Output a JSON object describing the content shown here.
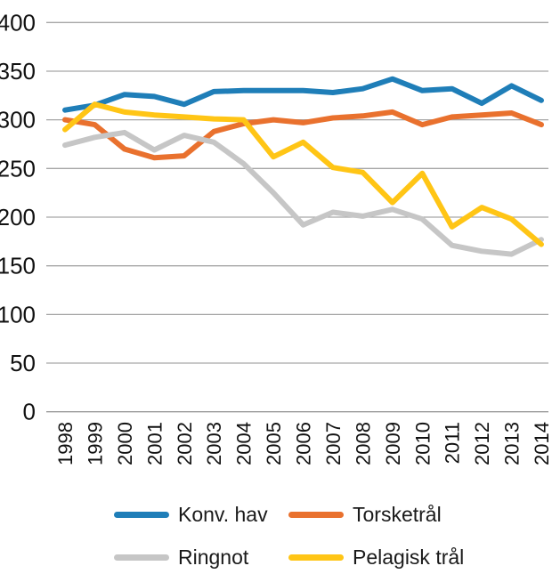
{
  "chart_data": {
    "type": "line",
    "title": "",
    "xlabel": "",
    "ylabel": "",
    "x": [
      1998,
      1999,
      2000,
      2001,
      2002,
      2003,
      2004,
      2005,
      2006,
      2007,
      2008,
      2009,
      2010,
      2011,
      2012,
      2013,
      2014
    ],
    "series": [
      {
        "name": "Konv. hav",
        "color": "#1F7EB8",
        "values": [
          310,
          315,
          326,
          324,
          316,
          329,
          330,
          330,
          330,
          328,
          332,
          342,
          330,
          332,
          317,
          335,
          320
        ]
      },
      {
        "name": "Torsketrål",
        "color": "#E9712E",
        "values": [
          300,
          295,
          270,
          261,
          263,
          288,
          296,
          300,
          297,
          302,
          304,
          308,
          295,
          303,
          305,
          307,
          295
        ]
      },
      {
        "name": "Ringnot",
        "color": "#C6C6C6",
        "values": [
          274,
          282,
          287,
          269,
          284,
          277,
          255,
          225,
          192,
          205,
          201,
          208,
          198,
          171,
          165,
          162,
          177
        ]
      },
      {
        "name": "Pelagisk trål",
        "color": "#FFC515",
        "values": [
          290,
          316,
          308,
          305,
          303,
          301,
          300,
          262,
          277,
          251,
          246,
          215,
          245,
          190,
          210,
          198,
          172
        ]
      }
    ],
    "ylim": [
      0,
      400
    ],
    "yticks": [
      0,
      50,
      100,
      150,
      200,
      250,
      300,
      350,
      400
    ],
    "grid": true,
    "legend_position": "bottom"
  },
  "colors": {
    "gridline": "#A6A6A6",
    "baseline": "#9B9B9B",
    "tick_text": "#111111",
    "background": "#FFFFFF"
  }
}
